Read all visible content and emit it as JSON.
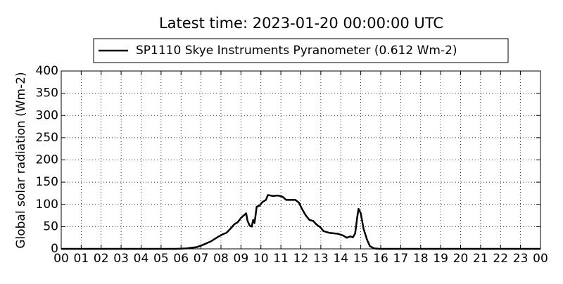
{
  "chart_data": {
    "type": "line",
    "title": "Latest time: 2023-01-20 00:00:00 UTC",
    "y_label": "Global solar radiation (Wm-2)",
    "x": [
      0,
      5.74,
      6.27,
      6.8,
      7.15,
      7.5,
      7.85,
      8.1,
      8.27,
      8.49,
      8.66,
      8.84,
      9.01,
      9.19,
      9.26,
      9.33,
      9.44,
      9.54,
      9.61,
      9.68,
      9.79,
      9.93,
      10.07,
      10.25,
      10.35,
      10.6,
      10.85,
      11.09,
      11.27,
      11.48,
      11.73,
      11.9,
      12.08,
      12.25,
      12.43,
      12.61,
      12.78,
      12.99,
      13.13,
      13.42,
      13.84,
      14.12,
      14.3,
      14.47,
      14.61,
      14.72,
      14.82,
      14.89,
      15.0,
      15.14,
      15.32,
      15.46,
      15.67,
      15.95,
      24
    ],
    "series": [
      {
        "name": "SP1110 Skye Instruments Pyranometer (0.612 Wm-2)",
        "color": "#000000",
        "values": [
          0,
          0,
          1,
          4,
          10,
          17,
          27,
          33,
          36,
          46,
          55,
          60,
          70,
          77,
          80,
          63,
          52,
          50,
          65,
          58,
          95,
          97,
          105,
          110,
          121,
          119,
          120,
          117,
          110,
          110,
          110,
          104,
          88,
          75,
          65,
          63,
          55,
          48,
          40,
          36,
          34,
          30,
          25,
          28,
          26,
          35,
          70,
          90,
          80,
          45,
          20,
          6,
          1,
          0,
          0
        ]
      }
    ],
    "xlim": [
      0,
      24
    ],
    "xticks": [
      {
        "value": 0,
        "label": "00"
      },
      {
        "value": 1,
        "label": "01"
      },
      {
        "value": 2,
        "label": "02"
      },
      {
        "value": 3,
        "label": "03"
      },
      {
        "value": 4,
        "label": "04"
      },
      {
        "value": 5,
        "label": "05"
      },
      {
        "value": 6,
        "label": "06"
      },
      {
        "value": 7,
        "label": "07"
      },
      {
        "value": 8,
        "label": "08"
      },
      {
        "value": 9,
        "label": "09"
      },
      10,
      11,
      12,
      13,
      14,
      15,
      16,
      17,
      18,
      19,
      20,
      21,
      22,
      23,
      {
        "value": 24,
        "label": "00"
      }
    ],
    "ylim": [
      0,
      400
    ],
    "yticks": [
      0,
      50,
      100,
      150,
      200,
      250,
      300,
      350,
      400
    ],
    "grid": true
  }
}
